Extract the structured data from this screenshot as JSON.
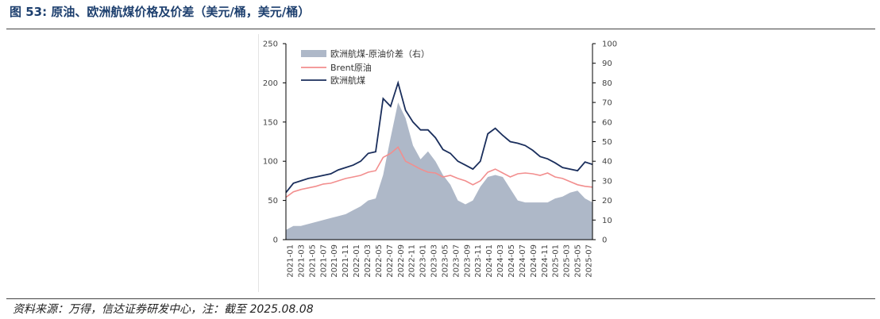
{
  "header": {
    "title": "图 53:  原油、欧洲航煤价格及价差（美元/桶，美元/桶）"
  },
  "footer": {
    "source": "资料来源：万得，信达证券研发中心，注：截至 2025.08.08"
  },
  "colors": {
    "spread": "#aeb8c8",
    "brent": "#f28e8e",
    "jet": "#1a2e5c",
    "axis": "#000000"
  },
  "chart_data": {
    "type": "area+line",
    "title": "原油、欧洲航煤价格及价差（美元/桶，美元/桶）",
    "x_labels": [
      "2021-01",
      "2021-03",
      "2021-05",
      "2021-07",
      "2021-09",
      "2021-11",
      "2022-01",
      "2022-03",
      "2022-05",
      "2022-07",
      "2022-09",
      "2022-11",
      "2023-01",
      "2023-03",
      "2023-05",
      "2023-07",
      "2023-09",
      "2023-11",
      "2024-01",
      "2024-03",
      "2024-05",
      "2024-07",
      "2024-09",
      "2024-11",
      "2025-01",
      "2025-03",
      "2025-05",
      "2025-07"
    ],
    "left_axis": {
      "min": 0,
      "max": 250,
      "ticks": [
        "0",
        "50",
        "100",
        "150",
        "200",
        "250"
      ]
    },
    "right_axis": {
      "min": 0,
      "max": 100,
      "ticks": [
        "0",
        "10",
        "20",
        "30",
        "40",
        "50",
        "60",
        "70",
        "80",
        "90",
        "100"
      ]
    },
    "legend": [
      "欧洲航煤-原油价差（右）",
      "Brent原油",
      "欧洲航煤"
    ],
    "series": [
      {
        "name": "欧洲航煤-原油价差（右）",
        "axis": "right",
        "kind": "area",
        "values": [
          5,
          7,
          7,
          8,
          9,
          10,
          11,
          12,
          13,
          15,
          17,
          20,
          21,
          33,
          52,
          70,
          62,
          48,
          41,
          45,
          40,
          33,
          28,
          20,
          18,
          20,
          27,
          32,
          33,
          32,
          26,
          20,
          19,
          19,
          19,
          19,
          21,
          22,
          24,
          25,
          21,
          19
        ]
      },
      {
        "name": "Brent原油",
        "axis": "left",
        "kind": "line",
        "values": [
          54,
          61,
          64,
          66,
          68,
          71,
          72,
          75,
          78,
          80,
          82,
          86,
          88,
          105,
          110,
          118,
          100,
          95,
          90,
          86,
          85,
          80,
          82,
          78,
          75,
          70,
          75,
          86,
          90,
          85,
          80,
          84,
          85,
          84,
          82,
          85,
          80,
          78,
          74,
          70,
          68,
          67
        ]
      },
      {
        "name": "欧洲航煤",
        "axis": "left",
        "kind": "line",
        "values": [
          60,
          72,
          75,
          78,
          80,
          82,
          84,
          89,
          92,
          95,
          100,
          110,
          112,
          180,
          170,
          200,
          165,
          150,
          140,
          140,
          130,
          115,
          110,
          100,
          95,
          90,
          100,
          135,
          142,
          133,
          125,
          123,
          120,
          114,
          106,
          103,
          98,
          92,
          90,
          88,
          99,
          96
        ]
      }
    ]
  }
}
